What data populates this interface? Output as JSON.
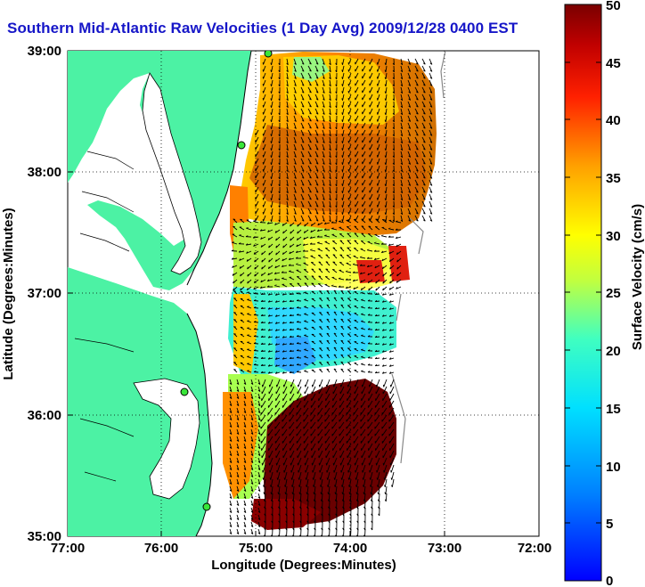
{
  "title": "Southern Mid-Atlantic Raw Velocities (1 Day Avg) 2009/12/28 0400 EST",
  "map": {
    "xlabel": "Longitude (Degrees:Minutes)",
    "ylabel": "Latitude (Degrees:Minutes)",
    "xticks": [
      "77:00",
      "76:00",
      "75:00",
      "74:00",
      "73:00",
      "72:00"
    ],
    "yticks": [
      "39:00",
      "38:00",
      "37:00",
      "36:00",
      "35:00"
    ],
    "colors": {
      "land": "#4cf2a4",
      "ocean": "#ffffff",
      "station": "#39e639"
    }
  },
  "colorbar": {
    "label": "Surface Velocity (cm/s)",
    "ticks": [
      "50",
      "45",
      "40",
      "35",
      "30",
      "25",
      "20",
      "15",
      "10",
      "5",
      "0"
    ]
  }
}
